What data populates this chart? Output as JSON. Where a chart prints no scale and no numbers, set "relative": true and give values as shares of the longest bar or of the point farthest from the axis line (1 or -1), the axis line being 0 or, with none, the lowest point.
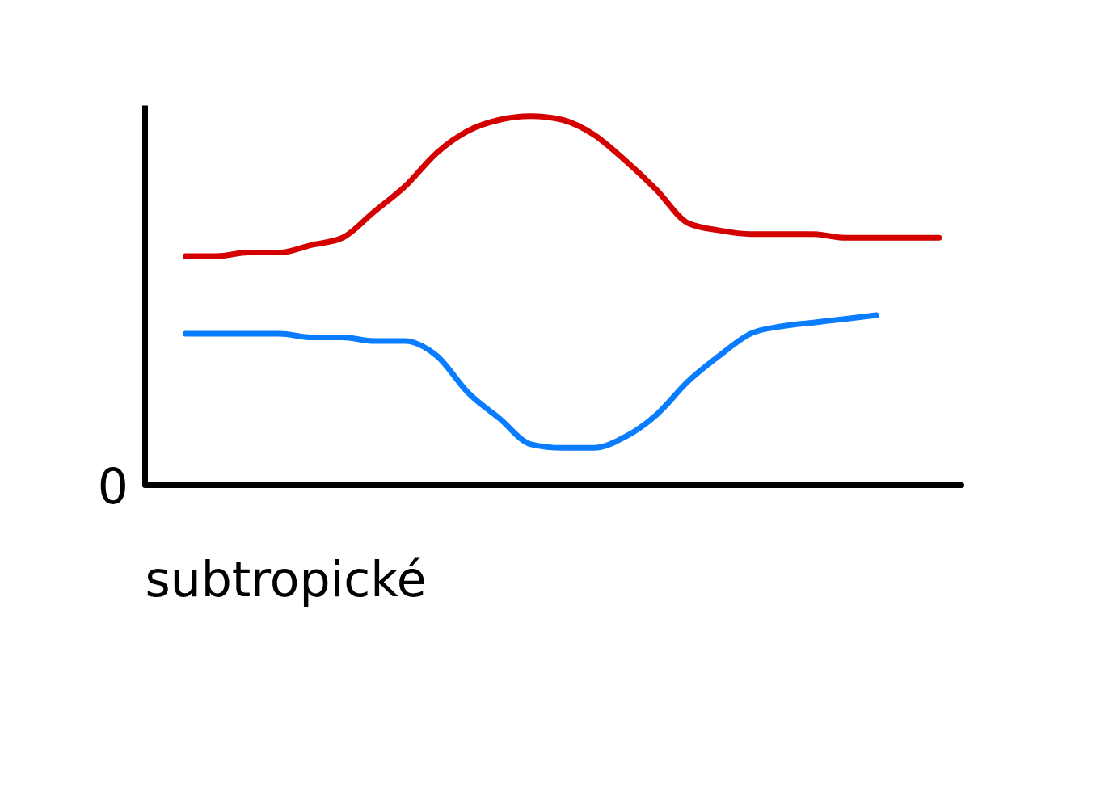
{
  "chart_data": {
    "type": "line",
    "relative": true,
    "xlabel": "subtropické",
    "annotations": [
      "0"
    ],
    "grid": false,
    "legend": false,
    "line_style": "solid",
    "marker": "none",
    "categories": [
      null,
      null,
      null,
      null,
      null,
      null,
      null,
      null,
      null,
      null,
      null,
      null,
      null,
      null,
      null,
      null,
      null,
      null,
      null,
      null,
      null,
      null,
      null,
      null,
      null
    ],
    "series": [
      {
        "color": "#d40000",
        "values": [
          0.62,
          0.62,
          0.63,
          0.63,
          0.65,
          0.67,
          0.74,
          0.81,
          0.9,
          0.96,
          0.99,
          1,
          0.99,
          0.95,
          0.88,
          0.8,
          0.71,
          0.69,
          0.68,
          0.68,
          0.68,
          0.67,
          0.67,
          0.67,
          0.67
        ]
      },
      {
        "color": "#0a7cff",
        "values": [
          0.41,
          0.41,
          0.41,
          0.41,
          0.4,
          0.4,
          0.39,
          0.39,
          0.35,
          0.25,
          0.18,
          0.11,
          0.1,
          0.1,
          0.13,
          0.19,
          0.28,
          0.35,
          0.41,
          0.43,
          0.44,
          0.45,
          0.46,
          null,
          null
        ]
      }
    ]
  }
}
